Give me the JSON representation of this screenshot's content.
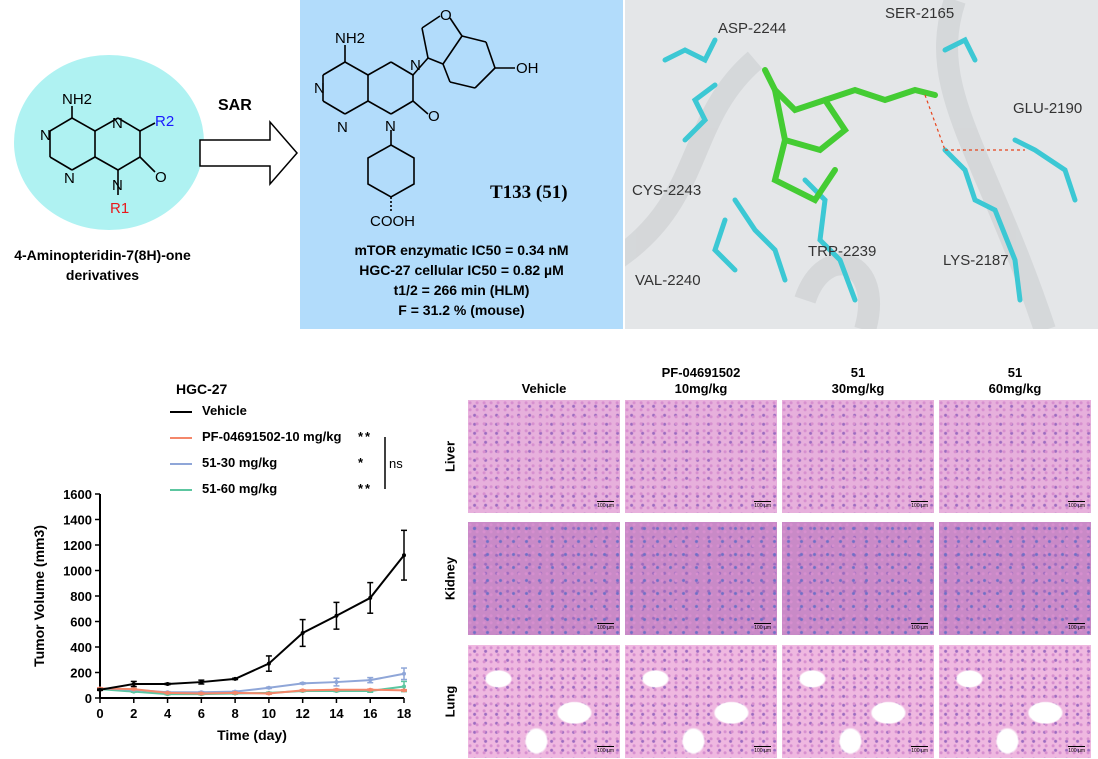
{
  "scheme": {
    "scaffold_label_line1": "4-Aminopteridin-7(8H)-one",
    "scaffold_label_line2": "derivatives",
    "scaffold_atoms": {
      "nh2": "NH2",
      "n": "N",
      "o": "O",
      "r1": "R1",
      "r2": "R2"
    },
    "arrow_label": "SAR",
    "r1_color": "#e8191c",
    "r2_color": "#1a1aff",
    "compound_name": "T133 (51)",
    "compound_atoms": {
      "nh2": "NH2",
      "oh": "OH",
      "cooh": "COOH",
      "o": "O",
      "n": "N"
    },
    "properties": [
      "mTOR enzymatic IC50 = 0.34 nM",
      "HGC-27 cellular IC50 = 0.82 µM",
      "t1/2 = 266 min (HLM)",
      "F = 31.2 % (mouse)"
    ]
  },
  "docking": {
    "residues": [
      "ASP-2244",
      "SER-2165",
      "GLU-2190",
      "CYS-2243",
      "TRP-2239",
      "LYS-2187",
      "VAL-2240"
    ]
  },
  "chart_data": {
    "type": "line",
    "title": "HGC-27",
    "xlabel": "Time (day)",
    "ylabel": "Tumor Volume (mm3)",
    "x": [
      0,
      2,
      4,
      6,
      8,
      10,
      12,
      14,
      16,
      18
    ],
    "xlim": [
      0,
      18
    ],
    "ylim": [
      0,
      1600
    ],
    "xticks": [
      "0",
      "2",
      "4",
      "6",
      "8",
      "10",
      "12",
      "14",
      "16",
      "18"
    ],
    "yticks": [
      "0",
      "200",
      "400",
      "600",
      "800",
      "1000",
      "1200",
      "1400",
      "1600"
    ],
    "grid": false,
    "legend": "top",
    "series": [
      {
        "name": "Vehicle",
        "color": "#000000",
        "values": [
          65,
          110,
          110,
          125,
          150,
          270,
          510,
          645,
          785,
          1120
        ],
        "error": [
          5,
          20,
          5,
          15,
          5,
          60,
          105,
          105,
          120,
          195
        ],
        "significance": ""
      },
      {
        "name": "PF-04691502-10 mg/kg",
        "color": "#f4876a",
        "values": [
          75,
          70,
          40,
          35,
          40,
          35,
          60,
          65,
          65,
          60
        ],
        "error": [
          5,
          5,
          5,
          5,
          5,
          5,
          5,
          5,
          5,
          5
        ],
        "significance": "**"
      },
      {
        "name": "51-30 mg/kg",
        "color": "#8fa6d8",
        "values": [
          75,
          65,
          45,
          45,
          50,
          80,
          115,
          125,
          140,
          190
        ],
        "error": [
          5,
          5,
          5,
          5,
          5,
          5,
          5,
          30,
          20,
          45
        ],
        "significance": "*"
      },
      {
        "name": "51-60 mg/kg",
        "color": "#5cc6a0",
        "values": [
          70,
          50,
          30,
          30,
          35,
          40,
          55,
          55,
          55,
          90
        ],
        "error": [
          5,
          5,
          5,
          5,
          5,
          5,
          5,
          5,
          10,
          40
        ],
        "significance": "**"
      }
    ],
    "bracket_label": "ns"
  },
  "histology": {
    "columns": [
      {
        "l1": "",
        "l2": "Vehicle"
      },
      {
        "l1": "PF-04691502",
        "l2": "10mg/kg"
      },
      {
        "l1": "51",
        "l2": "30mg/kg"
      },
      {
        "l1": "51",
        "l2": "60mg/kg"
      }
    ],
    "rows": [
      "Liver",
      "Kidney",
      "Lung"
    ],
    "scale_bar": "100 µm"
  }
}
